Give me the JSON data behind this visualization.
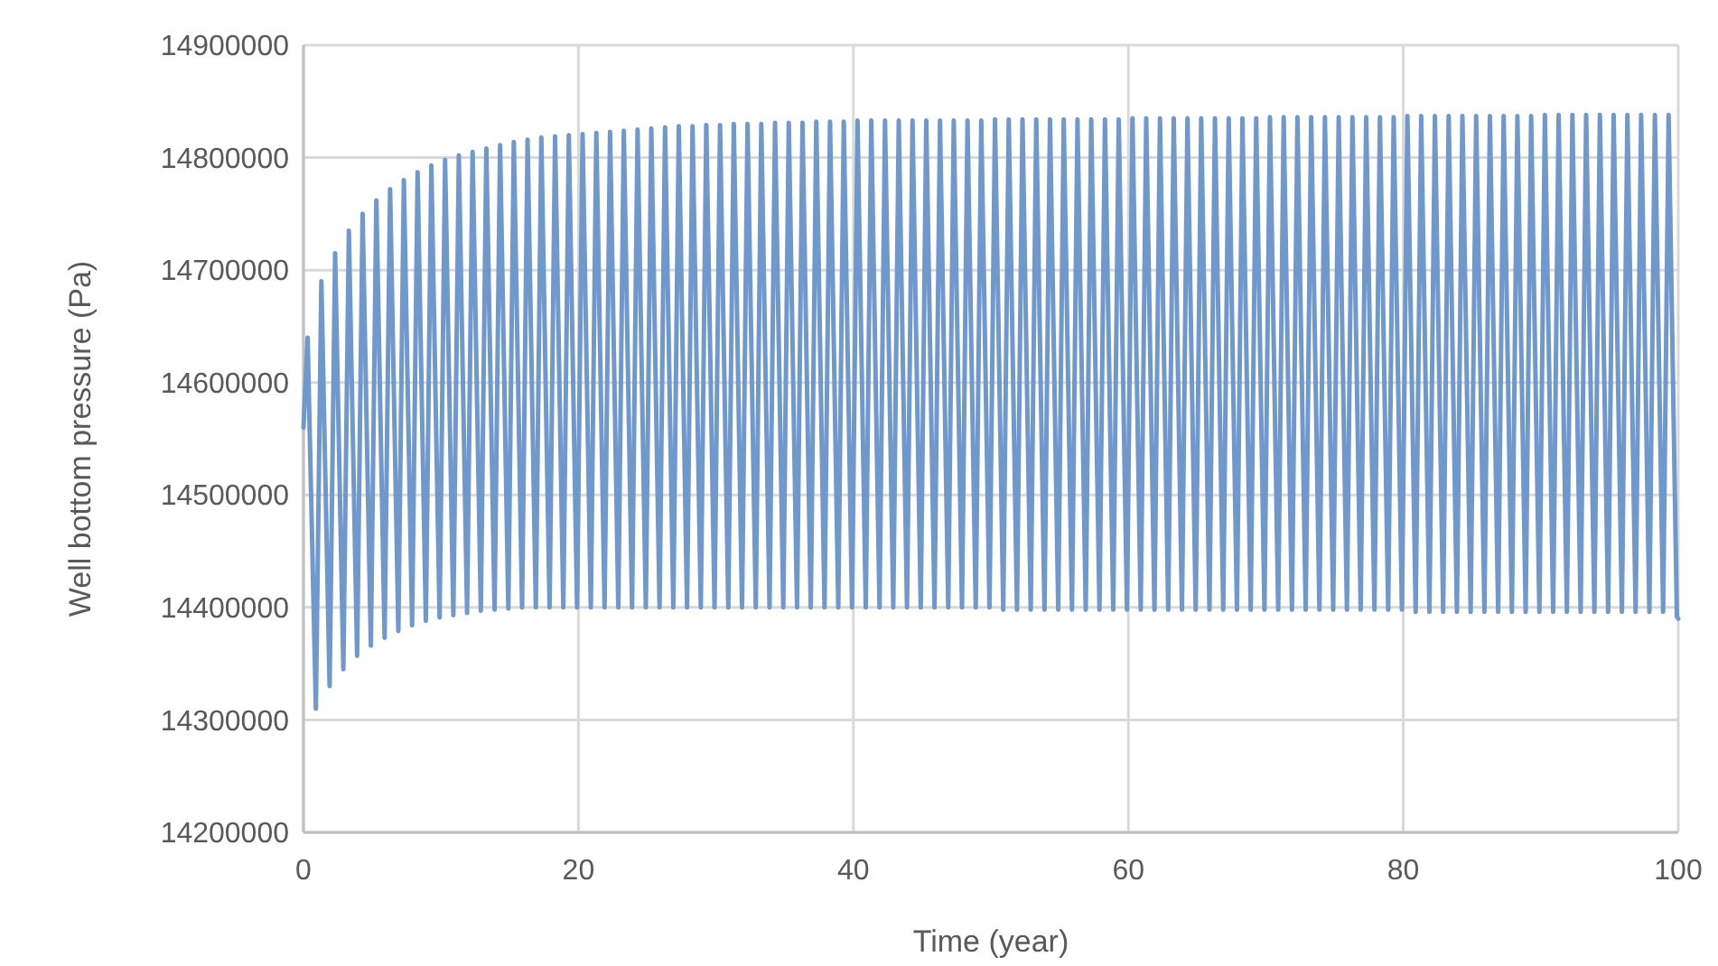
{
  "chart_data": {
    "type": "line",
    "xlabel": "Time (year)",
    "ylabel": "Well bottom pressure (Pa)",
    "xlim": [
      0,
      100
    ],
    "xticks": [
      0,
      20,
      40,
      60,
      80,
      100
    ],
    "ylim": [
      14200000,
      14900000
    ],
    "yticks": [
      14200000,
      14300000,
      14400000,
      14500000,
      14600000,
      14700000,
      14800000,
      14900000
    ],
    "grid": true,
    "marker": "none",
    "line_style": "solid",
    "series": [
      {
        "color": "#6f98cc",
        "x": [
          0,
          0.3,
          0.9,
          1.3,
          1.9,
          2.3,
          2.9,
          3.3,
          3.9,
          4.3,
          4.9,
          5.3,
          5.9,
          6.3,
          6.9,
          7.3,
          7.9,
          8.3,
          8.9,
          9.3,
          9.9,
          10.3,
          10.9,
          11.3,
          11.9,
          12.3,
          12.9,
          13.3,
          13.9,
          14.3,
          14.9,
          15.3,
          15.9,
          16.3,
          16.9,
          17.3,
          17.9,
          18.3,
          18.9,
          19.3,
          19.9,
          20.3,
          20.9,
          21.3,
          21.9,
          22.3,
          22.9,
          23.3,
          23.9,
          24.3,
          24.9,
          25.3,
          25.9,
          26.3,
          26.9,
          27.3,
          27.9,
          28.3,
          28.9,
          29.3,
          29.9,
          30.3,
          30.9,
          31.3,
          31.9,
          32.3,
          32.9,
          33.3,
          33.9,
          34.3,
          34.9,
          35.3,
          35.9,
          36.3,
          36.9,
          37.3,
          37.9,
          38.3,
          38.9,
          39.3,
          39.9,
          40.3,
          40.9,
          41.3,
          41.9,
          42.3,
          42.9,
          43.3,
          43.9,
          44.3,
          44.9,
          45.3,
          45.9,
          46.3,
          46.9,
          47.3,
          47.9,
          48.3,
          48.9,
          49.3,
          49.9,
          50.3,
          50.9,
          51.3,
          51.9,
          52.3,
          52.9,
          53.3,
          53.9,
          54.3,
          54.9,
          55.3,
          55.9,
          56.3,
          56.9,
          57.3,
          57.9,
          58.3,
          58.9,
          59.3,
          59.9,
          60.3,
          60.9,
          61.3,
          61.9,
          62.3,
          62.9,
          63.3,
          63.9,
          64.3,
          64.9,
          65.3,
          65.9,
          66.3,
          66.9,
          67.3,
          67.9,
          68.3,
          68.9,
          69.3,
          69.9,
          70.3,
          70.9,
          71.3,
          71.9,
          72.3,
          72.9,
          73.3,
          73.9,
          74.3,
          74.9,
          75.3,
          75.9,
          76.3,
          76.9,
          77.3,
          77.9,
          78.3,
          78.9,
          79.3,
          79.9,
          80.3,
          80.9,
          81.3,
          81.9,
          82.3,
          82.9,
          83.3,
          83.9,
          84.3,
          84.9,
          85.3,
          85.9,
          86.3,
          86.9,
          87.3,
          87.9,
          88.3,
          88.9,
          89.3,
          89.9,
          90.3,
          90.9,
          91.3,
          91.9,
          92.3,
          92.9,
          93.3,
          93.9,
          94.3,
          94.9,
          95.3,
          95.9,
          96.3,
          96.9,
          97.3,
          97.9,
          98.3,
          98.9,
          99.3,
          99.9,
          100
        ],
        "values": [
          14560000,
          14640000,
          14310000,
          14690000,
          14330000,
          14715000,
          14345000,
          14735000,
          14357000,
          14750000,
          14366000,
          14762000,
          14373000,
          14772000,
          14379000,
          14780000,
          14384000,
          14787000,
          14388000,
          14793000,
          14391000,
          14798000,
          14393000,
          14802000,
          14395000,
          14805000,
          14397000,
          14808000,
          14398000,
          14811000,
          14399000,
          14814000,
          14400000,
          14816000,
          14400000,
          14818000,
          14400000,
          14819000,
          14400000,
          14820000,
          14400000,
          14821000,
          14400000,
          14822000,
          14400000,
          14823000,
          14400000,
          14824000,
          14400000,
          14825000,
          14400000,
          14826000,
          14400000,
          14827000,
          14400000,
          14828000,
          14400000,
          14828000,
          14400000,
          14829000,
          14400000,
          14829000,
          14400000,
          14830000,
          14400000,
          14830000,
          14400000,
          14830000,
          14400000,
          14831000,
          14400000,
          14831000,
          14400000,
          14831000,
          14400000,
          14832000,
          14400000,
          14832000,
          14400000,
          14832000,
          14400000,
          14833000,
          14400000,
          14833000,
          14400000,
          14833000,
          14400000,
          14833000,
          14400000,
          14833000,
          14400000,
          14833000,
          14400000,
          14833000,
          14400000,
          14833000,
          14400000,
          14833000,
          14400000,
          14833000,
          14400000,
          14834000,
          14398000,
          14834000,
          14398000,
          14834000,
          14398000,
          14834000,
          14398000,
          14834000,
          14398000,
          14834000,
          14398000,
          14834000,
          14398000,
          14834000,
          14398000,
          14834000,
          14398000,
          14834000,
          14398000,
          14835000,
          14398000,
          14835000,
          14398000,
          14835000,
          14398000,
          14835000,
          14398000,
          14835000,
          14398000,
          14835000,
          14398000,
          14835000,
          14398000,
          14835000,
          14398000,
          14835000,
          14398000,
          14835000,
          14398000,
          14836000,
          14398000,
          14836000,
          14398000,
          14836000,
          14398000,
          14836000,
          14398000,
          14836000,
          14398000,
          14836000,
          14398000,
          14836000,
          14398000,
          14836000,
          14398000,
          14836000,
          14398000,
          14836000,
          14398000,
          14837000,
          14396000,
          14837000,
          14396000,
          14837000,
          14396000,
          14837000,
          14396000,
          14837000,
          14396000,
          14837000,
          14396000,
          14837000,
          14396000,
          14837000,
          14396000,
          14837000,
          14396000,
          14837000,
          14396000,
          14838000,
          14396000,
          14838000,
          14396000,
          14838000,
          14396000,
          14838000,
          14396000,
          14838000,
          14396000,
          14838000,
          14396000,
          14838000,
          14396000,
          14838000,
          14396000,
          14838000,
          14396000,
          14838000,
          14392000,
          14390000
        ]
      }
    ]
  }
}
